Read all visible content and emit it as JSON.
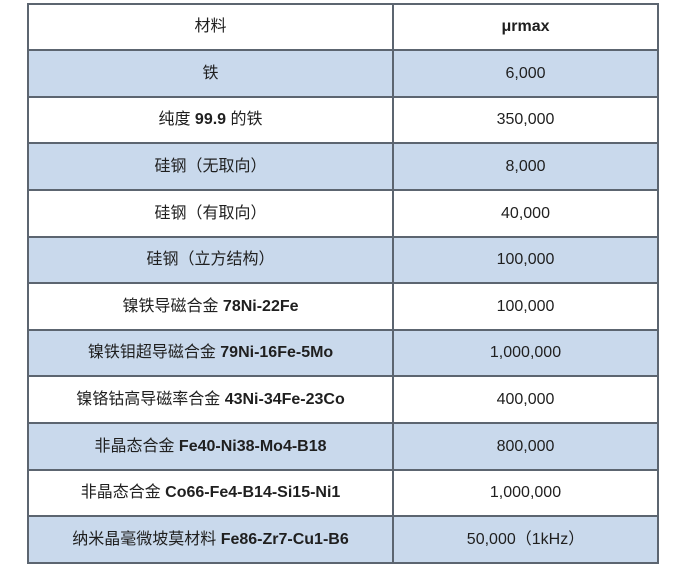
{
  "colors": {
    "row_shade": "#c9d9ec",
    "row_plain": "#ffffff",
    "border": "#5c6570",
    "text": "#1f1f1f"
  },
  "table": {
    "columns": [
      {
        "label": "材料"
      },
      {
        "label": "μrmax"
      }
    ],
    "rows": [
      {
        "shaded": true,
        "material": [
          {
            "t": "铁",
            "b": false
          }
        ],
        "value": "6,000"
      },
      {
        "shaded": false,
        "material": [
          {
            "t": "纯度 ",
            "b": false
          },
          {
            "t": "99.9",
            "b": true
          },
          {
            "t": " 的铁",
            "b": false
          }
        ],
        "value": "350,000"
      },
      {
        "shaded": true,
        "material": [
          {
            "t": "硅钢（无取向）",
            "b": false
          }
        ],
        "value": "8,000"
      },
      {
        "shaded": false,
        "material": [
          {
            "t": "硅钢（有取向）",
            "b": false
          }
        ],
        "value": "40,000"
      },
      {
        "shaded": true,
        "material": [
          {
            "t": "硅钢（立方结构）",
            "b": false
          }
        ],
        "value": "100,000"
      },
      {
        "shaded": false,
        "material": [
          {
            "t": "镍铁导磁合金 ",
            "b": false
          },
          {
            "t": "78Ni-22Fe",
            "b": true
          }
        ],
        "value": "100,000"
      },
      {
        "shaded": true,
        "material": [
          {
            "t": "镍铁钼超导磁合金 ",
            "b": false
          },
          {
            "t": "79Ni-16Fe-5Mo",
            "b": true
          }
        ],
        "value": "1,000,000"
      },
      {
        "shaded": false,
        "material": [
          {
            "t": "镍铬钴高导磁率合金 ",
            "b": false
          },
          {
            "t": "43Ni-34Fe-23Co",
            "b": true
          }
        ],
        "value": "400,000"
      },
      {
        "shaded": true,
        "material": [
          {
            "t": "非晶态合金 ",
            "b": false
          },
          {
            "t": "Fe40-Ni38-Mo4-B18",
            "b": true
          }
        ],
        "value": "800,000"
      },
      {
        "shaded": false,
        "material": [
          {
            "t": "非晶态合金 ",
            "b": false
          },
          {
            "t": "Co66-Fe4-B14-Si15-Ni1",
            "b": true
          }
        ],
        "value": "1,000,000"
      },
      {
        "shaded": true,
        "material": [
          {
            "t": "纳米晶毫微坡莫材料 ",
            "b": false
          },
          {
            "t": "Fe86-Zr7-Cu1-B6",
            "b": true
          }
        ],
        "value": "50,000（1kHz）"
      }
    ]
  }
}
